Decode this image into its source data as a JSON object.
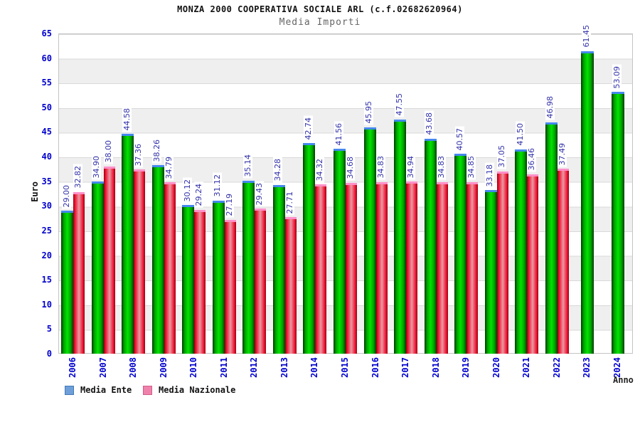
{
  "title": "MONZA 2000 COOPERATIVA SOCIALE ARL (c.f.02682620964)",
  "subtitle": "Media Importi",
  "chart_data": {
    "type": "bar",
    "title": "MONZA 2000 COOPERATIVA SOCIALE ARL (c.f.02682620964)",
    "subtitle": "Media Importi",
    "xlabel": "Anno",
    "ylabel": "Euro",
    "ylim": [
      0,
      65
    ],
    "ytick_step": 5,
    "grid": "horizontal-bands",
    "legend_position": "bottom-left",
    "categories": [
      "2006",
      "2007",
      "2008",
      "2009",
      "2010",
      "2011",
      "2012",
      "2013",
      "2014",
      "2015",
      "2016",
      "2017",
      "2018",
      "2019",
      "2020",
      "2021",
      "2022",
      "2023",
      "2024"
    ],
    "series": [
      {
        "name": "Media Ente",
        "values": [
          29.0,
          34.9,
          44.58,
          38.26,
          30.12,
          31.12,
          35.14,
          34.28,
          42.74,
          41.56,
          45.95,
          47.55,
          43.68,
          40.57,
          33.18,
          41.5,
          46.98,
          61.45,
          53.09
        ],
        "colors": {
          "edge": "#013b01",
          "mid": "#00a300",
          "center": "#00e400",
          "cap": "#4488ee"
        }
      },
      {
        "name": "Media Nazionale",
        "values": [
          32.82,
          38.0,
          37.36,
          34.79,
          29.24,
          27.19,
          29.43,
          27.71,
          34.32,
          34.68,
          34.83,
          34.94,
          34.83,
          34.85,
          37.05,
          36.46,
          37.49,
          null,
          null
        ],
        "colors": {
          "edge": "#930008",
          "mid": "#ee1133",
          "center": "#e99aa2",
          "cap": "#ff8fc8"
        }
      }
    ],
    "legend": [
      {
        "label": "Media Ente",
        "fill": "#6f9fd8",
        "border": "#4479b8"
      },
      {
        "label": "Media Nazionale",
        "fill": "#ef82ab",
        "border": "#d15c8c"
      }
    ],
    "text_colors": {
      "axis_blue": "#0000cd",
      "value_label_blue": "#3333aa"
    }
  }
}
